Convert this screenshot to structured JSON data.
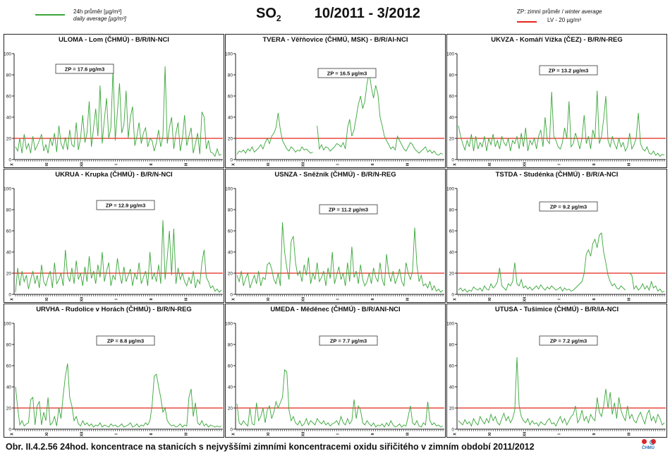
{
  "header": {
    "legend_24h": "24h průměr [µg/m³]",
    "legend_daily": "daily average [µg/m³]",
    "title_species": "SO",
    "title_sub": "2",
    "title_period": "10/2011 - 3/2012",
    "zp_label_cs": "ZP: zimní průměr /",
    "zp_label_en": "winter average",
    "lv_label": "LV - 20 µg/m³"
  },
  "colors": {
    "series": "#3aa63a",
    "limit": "#e2261b",
    "axis": "#222222"
  },
  "chart_data": [
    {
      "type": "line",
      "title": "ULOMA - Lom (ČHMÚ) - B/R/IN-NCI",
      "annotation": "ZP = 17.6 µg/m3",
      "ylim": [
        0,
        100
      ],
      "yticks": [
        0,
        20,
        40,
        60,
        80,
        100
      ],
      "limit_value": 20,
      "month_ticks": [
        "X",
        "XI",
        "XII",
        "I",
        "II",
        "III"
      ],
      "values": [
        12,
        8,
        20,
        6,
        24,
        10,
        15,
        6,
        22,
        9,
        13,
        18,
        24,
        8,
        14,
        6,
        20,
        13,
        25,
        7,
        32,
        15,
        10,
        21,
        9,
        28,
        14,
        12,
        35,
        9,
        20,
        42,
        16,
        25,
        55,
        12,
        30,
        48,
        22,
        70,
        15,
        38,
        58,
        20,
        30,
        85,
        18,
        45,
        72,
        25,
        33,
        65,
        20,
        40,
        50,
        13,
        22,
        35,
        15,
        25,
        30,
        12,
        20,
        18,
        8,
        16,
        28,
        12,
        22,
        88,
        15,
        30,
        40,
        10,
        25,
        35,
        8,
        20,
        42,
        13,
        22,
        30,
        6,
        15,
        25,
        5,
        45,
        40,
        10,
        18,
        7,
        6,
        3,
        10,
        4,
        5
      ],
      "segments": [
        [
          0,
          96
        ]
      ]
    },
    {
      "type": "line",
      "title": "TVERA - Věřňovice (ČHMÚ, MSK) - B/R/AI-NCI",
      "annotation": "ZP = 16.5 µg/m3",
      "ylim": [
        0,
        100
      ],
      "yticks": [
        0,
        20,
        40,
        60,
        80,
        100
      ],
      "limit_value": 20,
      "month_ticks": [
        "X",
        "XI",
        "XII",
        "I",
        "II",
        "III"
      ],
      "values": [
        5,
        8,
        7,
        9,
        6,
        10,
        8,
        12,
        7,
        9,
        11,
        14,
        10,
        16,
        20,
        15,
        22,
        25,
        30,
        44,
        28,
        18,
        14,
        10,
        8,
        12,
        10,
        7,
        9,
        8,
        12,
        9,
        10,
        8,
        6,
        7,
        null,
        32,
        10,
        14,
        9,
        12,
        11,
        8,
        10,
        12,
        15,
        14,
        12,
        16,
        10,
        30,
        38,
        22,
        28,
        40,
        52,
        60,
        48,
        55,
        72,
        82,
        68,
        58,
        70,
        62,
        40,
        32,
        22,
        18,
        14,
        10,
        12,
        9,
        22,
        18,
        14,
        10,
        8,
        12,
        16,
        14,
        10,
        8,
        6,
        8,
        10,
        12,
        7,
        9,
        6,
        8,
        5,
        4,
        6,
        5
      ],
      "segments": [
        [
          0,
          36
        ],
        [
          37,
          96
        ]
      ]
    },
    {
      "type": "line",
      "title": "UKVZA - Komáří Vížka (ČEZ) - B/R/N-REG",
      "annotation": "ZP = 13.2 µg/m3",
      "ylim": [
        0,
        100
      ],
      "yticks": [
        0,
        20,
        40,
        60,
        80,
        100
      ],
      "limit_value": 20,
      "month_ticks": [
        "X",
        "XI",
        "XII",
        "I",
        "II",
        "III"
      ],
      "values": [
        32,
        22,
        15,
        9,
        18,
        12,
        24,
        8,
        22,
        10,
        16,
        12,
        22,
        8,
        20,
        14,
        24,
        12,
        18,
        10,
        22,
        16,
        13,
        20,
        8,
        18,
        15,
        22,
        10,
        25,
        12,
        30,
        8,
        18,
        14,
        20,
        10,
        22,
        28,
        12,
        40,
        18,
        15,
        64,
        22,
        18,
        12,
        10,
        16,
        30,
        20,
        55,
        12,
        15,
        25,
        18,
        10,
        20,
        42,
        15,
        22,
        10,
        28,
        20,
        65,
        15,
        22,
        38,
        60,
        18,
        12,
        22,
        15,
        10,
        20,
        12,
        16,
        8,
        12,
        25,
        10,
        14,
        20,
        44,
        15,
        10,
        8,
        12,
        6,
        5,
        8,
        4,
        6,
        3,
        5,
        4
      ],
      "segments": [
        [
          0,
          96
        ]
      ]
    },
    {
      "type": "line",
      "title": "UKRUA - Krupka (ČHMÚ) - B/R/N-NCI",
      "annotation": "ZP = 12.9 µg/m3",
      "ylim": [
        0,
        100
      ],
      "yticks": [
        0,
        20,
        40,
        60,
        80,
        100
      ],
      "limit_value": 20,
      "month_ticks": [
        "X",
        "XI",
        "XII",
        "I",
        "II",
        "III"
      ],
      "values": [
        2,
        25,
        8,
        22,
        12,
        18,
        5,
        14,
        22,
        10,
        18,
        6,
        28,
        12,
        8,
        16,
        22,
        6,
        30,
        10,
        14,
        20,
        8,
        42,
        18,
        12,
        25,
        10,
        32,
        14,
        20,
        8,
        26,
        12,
        36,
        15,
        22,
        10,
        28,
        16,
        40,
        12,
        22,
        30,
        8,
        18,
        14,
        34,
        20,
        10,
        26,
        12,
        18,
        24,
        8,
        20,
        14,
        30,
        10,
        16,
        22,
        8,
        40,
        14,
        20,
        12,
        28,
        10,
        70,
        14,
        35,
        60,
        18,
        62,
        10,
        25,
        14,
        20,
        12,
        8,
        16,
        10,
        22,
        6,
        14,
        10,
        30,
        42,
        16,
        12,
        6,
        8,
        3,
        5,
        2,
        4
      ],
      "segments": [
        [
          0,
          96
        ]
      ]
    },
    {
      "type": "line",
      "title": "USNZA - Sněžník (ČHMÚ) - B/R/N-REG",
      "annotation": "ZP = 11.2 µg/m3",
      "ylim": [
        0,
        100
      ],
      "yticks": [
        0,
        20,
        40,
        60,
        80,
        100
      ],
      "limit_value": 20,
      "month_ticks": [
        "X",
        "XI",
        "XII",
        "I",
        "II",
        "III"
      ],
      "values": [
        18,
        12,
        22,
        8,
        15,
        20,
        6,
        12,
        18,
        10,
        22,
        8,
        16,
        14,
        28,
        30,
        24,
        14,
        10,
        20,
        8,
        68,
        40,
        25,
        14,
        50,
        55,
        30,
        18,
        22,
        12,
        28,
        18,
        35,
        10,
        20,
        14,
        30,
        12,
        16,
        22,
        8,
        25,
        15,
        40,
        10,
        18,
        26,
        14,
        20,
        8,
        30,
        12,
        45,
        16,
        22,
        10,
        28,
        14,
        8,
        12,
        20,
        10,
        25,
        16,
        12,
        30,
        14,
        8,
        38,
        20,
        12,
        22,
        10,
        16,
        24,
        12,
        8,
        30,
        20,
        14,
        22,
        63,
        28,
        12,
        18,
        8,
        10,
        6,
        12,
        4,
        8,
        3,
        5,
        2,
        4
      ],
      "segments": [
        [
          0,
          96
        ]
      ]
    },
    {
      "type": "line",
      "title": "TSTDA - Studénka (ČHMÚ) - B/R/A-NCI",
      "annotation": "ZP = 9.2 µg/m3",
      "ylim": [
        0,
        100
      ],
      "yticks": [
        0,
        20,
        40,
        60,
        80,
        100
      ],
      "limit_value": 20,
      "month_ticks": [
        "X",
        "XI",
        "XII",
        "I",
        "II",
        "III"
      ],
      "values": [
        4,
        6,
        3,
        5,
        2,
        4,
        3,
        7,
        5,
        4,
        6,
        3,
        8,
        5,
        4,
        10,
        6,
        8,
        12,
        25,
        8,
        6,
        4,
        10,
        8,
        12,
        30,
        10,
        8,
        14,
        6,
        8,
        5,
        7,
        4,
        6,
        8,
        5,
        9,
        6,
        4,
        7,
        5,
        8,
        6,
        4,
        5,
        7,
        3,
        6,
        4,
        5,
        3,
        4,
        6,
        8,
        10,
        12,
        20,
        38,
        42,
        36,
        48,
        52,
        44,
        56,
        58,
        40,
        30,
        18,
        12,
        8,
        10,
        6,
        5,
        8,
        6,
        4,
        null,
        20,
        18,
        5,
        8,
        4,
        6,
        10,
        5,
        8,
        4,
        12,
        6,
        8,
        3,
        5,
        2,
        3
      ],
      "segments": [
        [
          0,
          78
        ],
        [
          79,
          96
        ]
      ]
    },
    {
      "type": "line",
      "title": "URVHA - Rudolice v Horách (ČHMÚ) - B/R/N-REG",
      "annotation": "ZP = 8.8 µg/m3",
      "ylim": [
        0,
        100
      ],
      "yticks": [
        0,
        20,
        40,
        60,
        80,
        100
      ],
      "limit_value": 20,
      "month_ticks": [
        "X",
        "XI",
        "XII",
        "I",
        "II",
        "III"
      ],
      "values": [
        40,
        20,
        4,
        8,
        3,
        5,
        6,
        28,
        30,
        4,
        22,
        26,
        4,
        16,
        8,
        30,
        4,
        6,
        12,
        3,
        20,
        10,
        32,
        50,
        62,
        30,
        22,
        8,
        12,
        5,
        3,
        8,
        4,
        6,
        3,
        5,
        2,
        4,
        3,
        6,
        2,
        4,
        3,
        2,
        5,
        3,
        4,
        2,
        3,
        5,
        2,
        3,
        4,
        6,
        2,
        3,
        5,
        2,
        4,
        3,
        6,
        4,
        8,
        22,
        50,
        52,
        40,
        30,
        16,
        20,
        8,
        5,
        3,
        4,
        2,
        3,
        5,
        2,
        4,
        3,
        30,
        38,
        12,
        25,
        6,
        4,
        8,
        3,
        5,
        2,
        4,
        3,
        2,
        3,
        2,
        3
      ],
      "segments": [
        [
          0,
          96
        ]
      ]
    },
    {
      "type": "line",
      "title": "UMEDA - Měděnec (ČHMÚ) - B/R/ANI-NCI",
      "annotation": "ZP = 7.7 µg/m3",
      "ylim": [
        0,
        100
      ],
      "yticks": [
        0,
        20,
        40,
        60,
        80,
        100
      ],
      "limit_value": 20,
      "month_ticks": [
        "X",
        "XI",
        "XII",
        "I",
        "II",
        "III"
      ],
      "values": [
        24,
        6,
        4,
        8,
        5,
        3,
        20,
        5,
        4,
        25,
        8,
        12,
        20,
        6,
        18,
        22,
        10,
        16,
        26,
        20,
        25,
        30,
        56,
        54,
        18,
        8,
        12,
        6,
        4,
        8,
        3,
        5,
        10,
        4,
        8,
        6,
        4,
        10,
        7,
        5,
        8,
        4,
        6,
        3,
        5,
        6,
        8,
        4,
        12,
        6,
        4,
        10,
        5,
        8,
        28,
        10,
        22,
        18,
        6,
        4,
        8,
        5,
        3,
        6,
        2,
        4,
        3,
        5,
        2,
        6,
        3,
        8,
        4,
        2,
        3,
        5,
        2,
        4,
        3,
        12,
        22,
        6,
        4,
        8,
        3,
        2,
        6,
        4,
        26,
        8,
        4,
        6,
        3,
        4,
        2,
        3
      ],
      "segments": [
        [
          0,
          96
        ]
      ]
    },
    {
      "type": "line",
      "title": "UTUSA - Tušimice (ČHMÚ) - B/R/IA-NCI",
      "annotation": "ZP = 7.2 µg/m3",
      "ylim": [
        0,
        100
      ],
      "yticks": [
        0,
        20,
        40,
        60,
        80,
        100
      ],
      "limit_value": 20,
      "month_ticks": [
        "X",
        "XI",
        "XII",
        "I",
        "II",
        "III"
      ],
      "values": [
        8,
        6,
        4,
        9,
        5,
        7,
        3,
        10,
        6,
        4,
        12,
        8,
        5,
        10,
        6,
        14,
        8,
        12,
        6,
        4,
        10,
        15,
        8,
        12,
        6,
        10,
        18,
        68,
        22,
        12,
        8,
        6,
        10,
        4,
        8,
        5,
        6,
        3,
        7,
        5,
        4,
        8,
        10,
        5,
        6,
        3,
        8,
        12,
        6,
        10,
        4,
        8,
        12,
        14,
        22,
        6,
        10,
        18,
        8,
        12,
        6,
        14,
        10,
        8,
        30,
        16,
        12,
        22,
        38,
        20,
        35,
        14,
        25,
        10,
        30,
        18,
        12,
        8,
        22,
        10,
        14,
        8,
        6,
        12,
        16,
        10,
        5,
        14,
        18,
        8,
        12,
        6,
        14,
        10,
        4,
        6
      ],
      "segments": [
        [
          0,
          96
        ]
      ]
    }
  ],
  "caption": "Obr. II.4.2.56  24hod. koncentrace na stanicích s nejvyššími zimními koncentracemi oxidu siřičitého v zimním období 2011/2012",
  "logo_text": "ČHMÚ"
}
